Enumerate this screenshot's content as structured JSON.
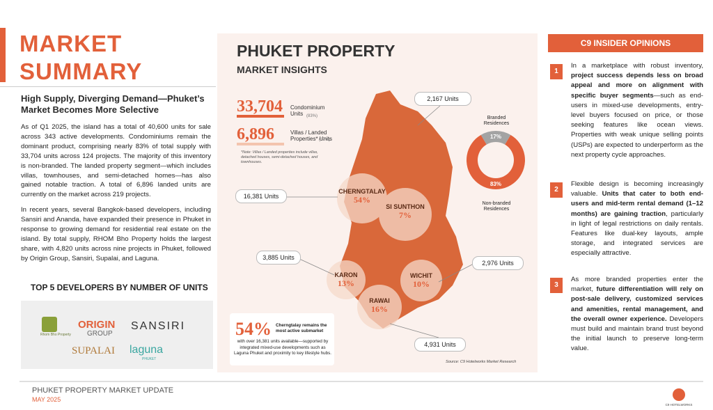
{
  "summary": {
    "title_line1": "MARKET",
    "title_line2": "SUMMARY",
    "subtitle": "High Supply, Diverging Demand—Phuket’s Market Becomes More Selective",
    "paragraphs": [
      "As of Q1 2025, the island has a total of 40,600 units for sale across 343 active developments. Condominiums remain the dominant product, comprising nearly 83% of total supply with 33,704 units across 124 projects. The majority of this inventory is non-branded. The landed property segment—which includes villas, townhouses, and semi-detached homes—has also gained notable traction. A total of 6,896 landed units are currently on the market across 219 projects.",
      "In recent years, several Bangkok-based developers, including Sansiri and Ananda, have expanded their presence in Phuket in response to growing demand for residential real estate on the island. By total supply, RHOM Bho Property holds the largest share, with 4,820 units across nine projects in Phuket, followed by Origin Group, Sansiri, Supalai, and Laguna."
    ],
    "developers_title": "TOP 5 DEVELOPERS BY NUMBER OF UNITS",
    "developers": [
      "Rhom Bho Property",
      "ORIGIN",
      "GROUP",
      "SANSIRI",
      "SUPALAI",
      "laguna",
      "PHUKET"
    ]
  },
  "insights": {
    "title": "PHUKET PROPERTY",
    "subtitle": "MARKET INSIGHTS",
    "stats": [
      {
        "value": "33,704",
        "label": "Condominium Units",
        "share": "(83%)"
      },
      {
        "value": "6,896",
        "label": "Villas / Landed Properties* Units",
        "share": "(17%)"
      }
    ],
    "note": "*Note: Villas / Landed properties include villas, detached houses, semi-detached houses, and townhouses.",
    "areas": [
      {
        "name": "CHERNGTALAY",
        "share": "54%"
      },
      {
        "name": "SI SUNTHON",
        "share": "7%"
      },
      {
        "name": "KARON",
        "share": "13%"
      },
      {
        "name": "WICHIT",
        "share": "10%"
      },
      {
        "name": "RAWAI",
        "share": "16%"
      }
    ],
    "callouts": [
      "2,167 Units",
      "16,381 Units",
      "3,885 Units",
      "2,976 Units",
      "4,931 Units"
    ],
    "donut": {
      "segments": [
        {
          "name": "Branded Residences",
          "value": 17,
          "label": "17%",
          "color": "#a3a3a3"
        },
        {
          "name": "Non-branded Residences",
          "value": 83,
          "label": "83%",
          "color": "#e2603a"
        }
      ]
    },
    "highlight": {
      "value": "54%",
      "bold": "Cherngtalay remains the most active submarket",
      "text": "with over 16,381 units available—supported by integrated mixed-use developments such as Laguna Phuket and proximity to key lifestyle hubs."
    },
    "source": "Source: C9 Hotelworks Market Research"
  },
  "opinions": {
    "title": "C9 INSIDER OPINIONS",
    "items": [
      {
        "number": "1",
        "parts": [
          {
            "text": "In a marketplace with robust inventory, ",
            "bold": false
          },
          {
            "text": "project success depends less on broad appeal and more on alignment with specific buyer segments",
            "bold": true
          },
          {
            "text": "—such as end-users in mixed-use developments, entry-level buyers focused on price, or those seeking features like ocean views. Properties with weak unique selling points (USPs) are expected to underperform as the next property cycle approaches.",
            "bold": false
          }
        ]
      },
      {
        "number": "2",
        "parts": [
          {
            "text": "Flexible design is becoming increasingly valuable. ",
            "bold": false
          },
          {
            "text": "Units that cater to both end-users and mid-term rental demand (1–12 months) are gaining traction",
            "bold": true
          },
          {
            "text": ", particularly in light of legal restrictions on daily rentals. Features like dual-key layouts, ample storage, and integrated services are especially attractive.",
            "bold": false
          }
        ]
      },
      {
        "number": "3",
        "parts": [
          {
            "text": "As more branded properties enter the market, ",
            "bold": false
          },
          {
            "text": "future differentiation will rely on post-sale delivery, customized services and amenities, rental management, and the overall owner experience.",
            "bold": true
          },
          {
            "text": " Developers must build and maintain brand trust beyond the initial launch to preserve long-term value.",
            "bold": false
          }
        ]
      }
    ]
  },
  "footer": {
    "title": "PHUKET PROPERTY MARKET UPDATE",
    "date": "MAY 2025",
    "logo": "C9 HOTELWORKS"
  }
}
